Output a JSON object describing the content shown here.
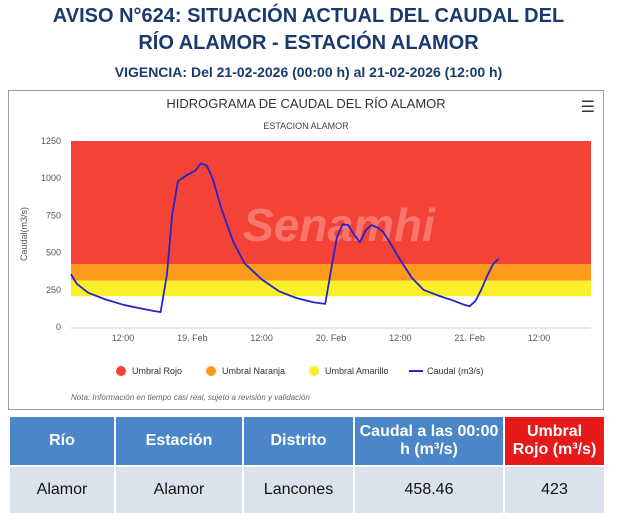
{
  "header": {
    "title_line1": "AVISO N°624: SITUACIÓN ACTUAL DEL CAUDAL DEL",
    "title_line2": "RÍO ALAMOR - ESTACIÓN ALAMOR",
    "vigencia": "VIGENCIA: Del 21-02-2026 (00:00 h) al 21-02-2026 (12:00 h)"
  },
  "colors": {
    "rojo": "#f44336",
    "naranja": "#fb9a1b",
    "amarillo": "#fbee2a",
    "series": "#2424c8",
    "header_blue": "#4a86c8",
    "header_red": "#e8191a"
  },
  "chart_data": {
    "type": "line",
    "title": "HIDROGRAMA DE CAUDAL DEL RÍO ALAMOR",
    "subtitle": "ESTACION ALAMOR",
    "ylabel": "Caudal(m3/s)",
    "xlabel": "",
    "ylim": [
      0,
      1250
    ],
    "yticks": [
      0,
      250,
      500,
      750,
      1000,
      1250
    ],
    "xlim": [
      -9,
      81
    ],
    "xtick_positions": [
      0,
      12,
      24,
      36,
      48,
      60,
      72
    ],
    "xtick_labels": [
      "12:00",
      "19. Feb",
      "12:00",
      "20. Feb",
      "12:00",
      "21. Feb",
      "12:00"
    ],
    "bands": [
      {
        "name": "Umbral Rojo",
        "from": 423,
        "to": 1250,
        "color": "#f44336"
      },
      {
        "name": "Umbral Naranja",
        "from": 311,
        "to": 423,
        "color": "#fb9a1b"
      },
      {
        "name": "Umbral Amarillo",
        "from": 207,
        "to": 311,
        "color": "#fbee2a"
      }
    ],
    "series": [
      {
        "name": "Caudal (m3/s)",
        "color": "#2424c8",
        "points": [
          [
            -9,
            355
          ],
          [
            -8,
            290
          ],
          [
            -6,
            230
          ],
          [
            -3,
            185
          ],
          [
            0,
            150
          ],
          [
            3,
            125
          ],
          [
            5,
            110
          ],
          [
            6.5,
            100
          ],
          [
            7.6,
            350
          ],
          [
            8.5,
            750
          ],
          [
            9.5,
            980
          ],
          [
            11,
            1020
          ],
          [
            12.5,
            1050
          ],
          [
            13.5,
            1100
          ],
          [
            14.5,
            1085
          ],
          [
            15.5,
            1000
          ],
          [
            17,
            800
          ],
          [
            19,
            580
          ],
          [
            21,
            430
          ],
          [
            24,
            320
          ],
          [
            27,
            240
          ],
          [
            30,
            195
          ],
          [
            33,
            165
          ],
          [
            35,
            155
          ],
          [
            36,
            380
          ],
          [
            37,
            600
          ],
          [
            38,
            690
          ],
          [
            39,
            685
          ],
          [
            40,
            620
          ],
          [
            41,
            570
          ],
          [
            42,
            650
          ],
          [
            43,
            685
          ],
          [
            44,
            670
          ],
          [
            45,
            640
          ],
          [
            46,
            580
          ],
          [
            48,
            450
          ],
          [
            50,
            330
          ],
          [
            52,
            250
          ],
          [
            55,
            205
          ],
          [
            57,
            180
          ],
          [
            59,
            150
          ],
          [
            60,
            140
          ],
          [
            61,
            175
          ],
          [
            62,
            250
          ],
          [
            63,
            340
          ],
          [
            64,
            420
          ],
          [
            65,
            458
          ]
        ]
      }
    ],
    "legend": [
      "Umbral Rojo",
      "Umbral Naranja",
      "Umbral Amarillo",
      "Caudal (m3/s)"
    ],
    "legend_position": "bottom",
    "note": "Nota: Información en tiempo casi real, sujeto a revisión y validación",
    "watermark": "Senamhi"
  },
  "table": {
    "headers": [
      "Río",
      "Estación",
      "Distrito",
      "Caudal a las 00:00 h (m³/s)",
      "Umbral Rojo (m³/s)"
    ],
    "rows": [
      [
        "Alamor",
        "Alamor",
        "Lancones",
        "458.46",
        "423"
      ]
    ]
  }
}
